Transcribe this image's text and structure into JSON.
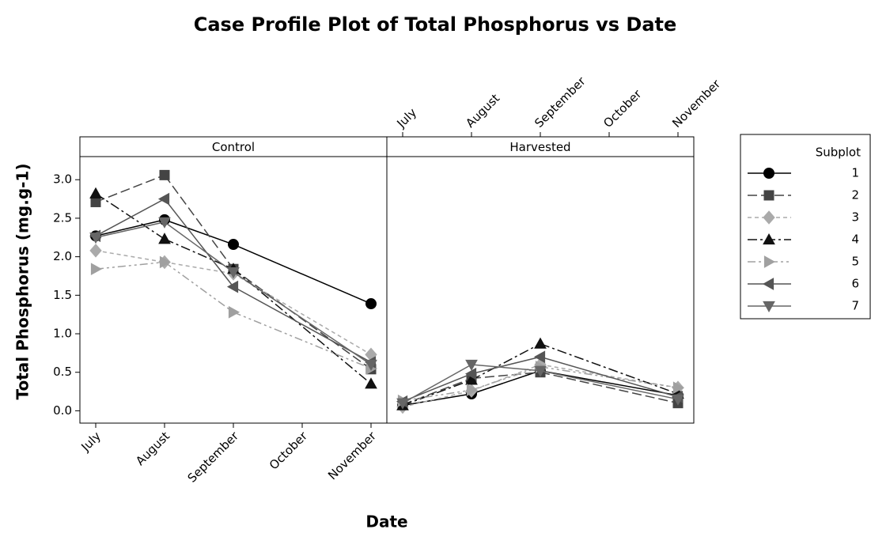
{
  "chart_data": {
    "type": "line",
    "title": "Case Profile Plot of Total Phosphorus vs Date",
    "x_label": "Date",
    "y_label": "Total Phosphorus (mg.g-1)",
    "legend_title": "Subplot",
    "categories": [
      "July",
      "August",
      "September",
      "October",
      "November"
    ],
    "ylim": [
      -0.16,
      3.3
    ],
    "yticks": [
      {
        "value": 0,
        "label": "0.0"
      },
      {
        "value": 0.5,
        "label": "0.5"
      },
      {
        "value": 1,
        "label": "1.0"
      },
      {
        "value": 1.5,
        "label": "1.5"
      },
      {
        "value": 2,
        "label": "2.0"
      },
      {
        "value": 2.5,
        "label": "2.5"
      },
      {
        "value": 3,
        "label": "3.0"
      }
    ],
    "panels": [
      {
        "title": "Control",
        "series": [
          {
            "name": "1",
            "color": "#000000",
            "marker": "circle",
            "dash": "none",
            "values": [
              2.27,
              2.48,
              2.16,
              null,
              1.39
            ]
          },
          {
            "name": "2",
            "color": "#444444",
            "marker": "square",
            "dash": "12 5",
            "values": [
              2.71,
              3.06,
              1.84,
              null,
              0.54
            ]
          },
          {
            "name": "3",
            "color": "#aaaaaa",
            "marker": "diamond",
            "dash": "5 4",
            "values": [
              2.08,
              1.93,
              1.78,
              null,
              0.73
            ]
          },
          {
            "name": "4",
            "color": "#111111",
            "marker": "triangle-up",
            "dash": "12 4 3 4",
            "values": [
              2.82,
              2.23,
              1.84,
              null,
              0.35
            ]
          },
          {
            "name": "5",
            "color": "#a0a0a0",
            "marker": "triangle-right",
            "dash": "10 4 3 4 3 4",
            "values": [
              1.84,
              1.93,
              1.28,
              null,
              0.55
            ]
          },
          {
            "name": "6",
            "color": "#555555",
            "marker": "triangle-left",
            "dash": "none",
            "values": [
              2.27,
              2.75,
              1.61,
              null,
              0.63
            ]
          },
          {
            "name": "7",
            "color": "#666666",
            "marker": "triangle-down",
            "dash": "none",
            "values": [
              2.25,
              2.45,
              1.8,
              null,
              0.6
            ]
          }
        ]
      },
      {
        "title": "Harvested",
        "series": [
          {
            "name": "1",
            "color": "#000000",
            "marker": "circle",
            "dash": "none",
            "values": [
              0.07,
              0.22,
              0.52,
              null,
              0.2
            ]
          },
          {
            "name": "2",
            "color": "#444444",
            "marker": "square",
            "dash": "12 5",
            "values": [
              0.08,
              0.42,
              0.5,
              null,
              0.1
            ]
          },
          {
            "name": "3",
            "color": "#aaaaaa",
            "marker": "diamond",
            "dash": "5 4",
            "values": [
              0.05,
              0.26,
              0.6,
              null,
              0.3
            ]
          },
          {
            "name": "4",
            "color": "#111111",
            "marker": "triangle-up",
            "dash": "12 4 3 4",
            "values": [
              0.07,
              0.4,
              0.87,
              null,
              0.22
            ]
          },
          {
            "name": "5",
            "color": "#a0a0a0",
            "marker": "triangle-right",
            "dash": "10 4 3 4 3 4",
            "values": [
              0.13,
              0.27,
              0.57,
              null,
              0.3
            ]
          },
          {
            "name": "6",
            "color": "#555555",
            "marker": "triangle-left",
            "dash": "none",
            "values": [
              0.12,
              0.48,
              0.7,
              null,
              0.18
            ]
          },
          {
            "name": "7",
            "color": "#666666",
            "marker": "triangle-down",
            "dash": "none",
            "values": [
              0.1,
              0.6,
              0.52,
              null,
              0.15
            ]
          }
        ]
      }
    ]
  }
}
